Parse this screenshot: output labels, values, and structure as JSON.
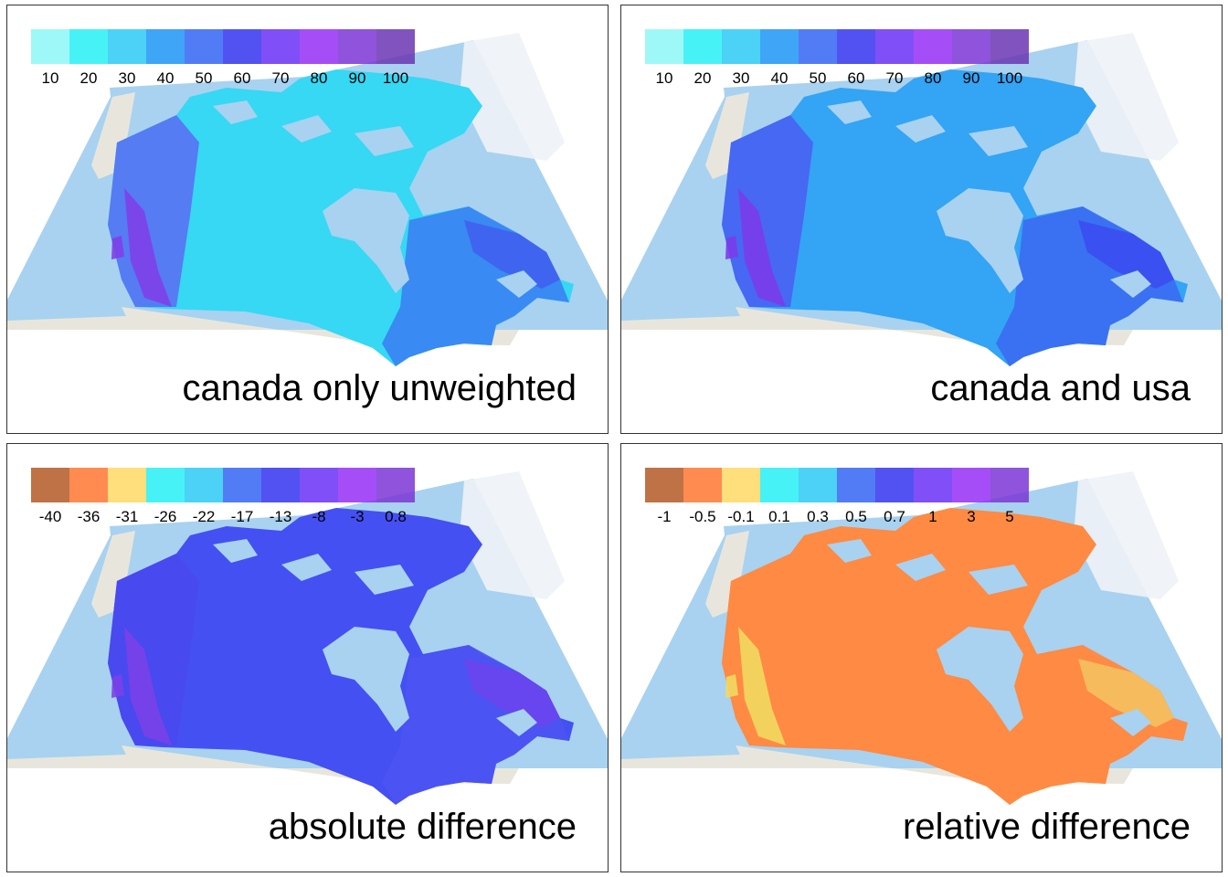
{
  "colors": {
    "ocean": "#a8d2f0",
    "land_other": "#e8e6dc",
    "greenland": "#eef2f6"
  },
  "panels": [
    {
      "caption": "canada only unweighted",
      "legend": {
        "labels": [
          "10",
          "20",
          "30",
          "40",
          "50",
          "60",
          "70",
          "80",
          "90",
          "100"
        ],
        "colors": [
          "#8ff7f7",
          "#27f0f5",
          "#2ccbf5",
          "#1e96f6",
          "#3466f5",
          "#3434f0",
          "#6a31f6",
          "#9630f6",
          "#7c36d6",
          "#6c36b4"
        ]
      },
      "fill": {
        "main": "#36d8f4",
        "west": "#5a6cf2",
        "mountain": "#8040e8",
        "east": "#3a82f2",
        "far_east": "#4060f0"
      }
    },
    {
      "caption": "canada and usa",
      "legend": {
        "labels": [
          "10",
          "20",
          "30",
          "40",
          "50",
          "60",
          "70",
          "80",
          "90",
          "100"
        ],
        "colors": [
          "#8ff7f7",
          "#27f0f5",
          "#2ccbf5",
          "#1e96f6",
          "#3466f5",
          "#3434f0",
          "#6a31f6",
          "#9630f6",
          "#7c36d6",
          "#6c36b4"
        ]
      },
      "fill": {
        "main": "#34a4f4",
        "west": "#4a5ef2",
        "mountain": "#7a3cea",
        "east": "#3a6cf2",
        "far_east": "#3c4cf0"
      }
    },
    {
      "caption": "absolute difference",
      "legend": {
        "labels": [
          "-40",
          "-36",
          "-31",
          "-26",
          "-22",
          "-17",
          "-13",
          "-8",
          "-3",
          "0.8"
        ],
        "colors": [
          "#b55a25",
          "#ff7733",
          "#ffd966",
          "#27f0f5",
          "#2ccbf5",
          "#3466f5",
          "#3434f0",
          "#6a31f6",
          "#9630f6",
          "#7c36d6"
        ]
      },
      "fill": {
        "main": "#4450f2",
        "west": "#4a48f0",
        "mountain": "#7a40e8",
        "east": "#4c54f2",
        "far_east": "#6a44ee"
      }
    },
    {
      "caption": "relative difference",
      "legend": {
        "labels": [
          "-1",
          "-0.5",
          "-0.1",
          "0.1",
          "0.3",
          "0.5",
          "0.7",
          "1",
          "3",
          "5"
        ],
        "colors": [
          "#b55a25",
          "#ff7733",
          "#ffd966",
          "#27f0f5",
          "#2ccbf5",
          "#3466f5",
          "#3434f0",
          "#6a31f6",
          "#9630f6",
          "#7c36d6"
        ]
      },
      "fill": {
        "main": "#ff8a44",
        "west": "#ff8a44",
        "mountain": "#f2d860",
        "east": "#ff8a44",
        "far_east": "#f4c060"
      }
    }
  ]
}
